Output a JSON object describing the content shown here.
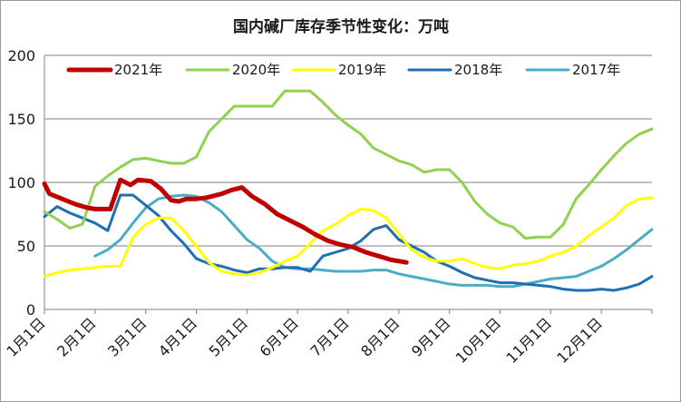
{
  "chart_data": {
    "type": "line",
    "title": "国内碱厂库存季节性变化：万吨",
    "xlabel": "",
    "ylabel": "",
    "ylim": [
      0,
      200
    ],
    "yticks": [
      0,
      50,
      100,
      150,
      200
    ],
    "grid": "horizontal",
    "legend_position": "top",
    "x_categories": [
      "1月1日",
      "2月1日",
      "3月1日",
      "4月1日",
      "5月1日",
      "6月1日",
      "7月1日",
      "8月1日",
      "9月1日",
      "10月1日",
      "11月1日",
      "12月1日"
    ],
    "series": [
      {
        "name": "2021年",
        "color": "#c00000",
        "x": [
          0,
          0.1,
          0.35,
          0.6,
          0.85,
          1,
          1.15,
          1.3,
          1.5,
          1.7,
          1.85,
          2.1,
          2.3,
          2.5,
          2.65,
          2.8,
          3,
          3.2,
          3.5,
          3.7,
          3.9,
          4.1,
          4.35,
          4.6,
          4.85,
          5.1,
          5.35,
          5.6,
          5.85,
          6.1,
          6.35,
          6.6,
          6.85,
          7.15
        ],
        "y": [
          99,
          91,
          87,
          83,
          80,
          79,
          79,
          79,
          102,
          98,
          102,
          101,
          95,
          86,
          85,
          87,
          87,
          88,
          91,
          94,
          96,
          89,
          83,
          75,
          70,
          65,
          59,
          54,
          51,
          49,
          45,
          42,
          39,
          37
        ]
      },
      {
        "name": "2020年",
        "color": "#92d050",
        "x": [
          0,
          0.25,
          0.5,
          0.75,
          1,
          1.25,
          1.5,
          1.75,
          2,
          2.25,
          2.5,
          2.75,
          3,
          3.25,
          3.5,
          3.75,
          4,
          4.25,
          4.5,
          4.75,
          5,
          5.25,
          5.5,
          5.75,
          6,
          6.25,
          6.5,
          6.75,
          7,
          7.25,
          7.5,
          7.75,
          8,
          8.25,
          8.5,
          8.75,
          9,
          9.25,
          9.5,
          9.75,
          10,
          10.25,
          10.5,
          10.75,
          11,
          11.25,
          11.5,
          11.75,
          12
        ],
        "y": [
          77,
          71,
          64,
          67,
          97,
          105,
          112,
          118,
          119,
          117,
          115,
          115,
          120,
          140,
          150,
          160,
          160,
          160,
          160,
          172,
          172,
          172,
          163,
          153,
          145,
          138,
          127,
          122,
          117,
          114,
          108,
          110,
          110,
          100,
          85,
          75,
          68,
          65,
          56,
          57,
          57,
          67,
          87,
          98,
          110,
          121,
          131,
          138,
          142
        ]
      },
      {
        "name": "2019年",
        "color": "#ffff00",
        "x": [
          0,
          0.25,
          0.5,
          0.75,
          1,
          1.25,
          1.5,
          1.75,
          2,
          2.25,
          2.5,
          2.75,
          3,
          3.25,
          3.5,
          3.75,
          4,
          4.25,
          4.5,
          4.75,
          5,
          5.25,
          5.5,
          5.75,
          6,
          6.25,
          6.5,
          6.75,
          7,
          7.25,
          7.5,
          7.75,
          8,
          8.25,
          8.5,
          8.75,
          9,
          9.25,
          9.5,
          9.75,
          10,
          10.25,
          10.5,
          10.75,
          11,
          11.25,
          11.5,
          11.75,
          12
        ],
        "y": [
          26,
          29,
          31,
          32,
          33,
          34,
          34,
          57,
          67,
          72,
          72,
          62,
          50,
          37,
          30,
          28,
          27,
          29,
          33,
          38,
          42,
          52,
          62,
          67,
          74,
          79,
          78,
          72,
          60,
          47,
          41,
          38,
          38,
          40,
          36,
          33,
          32,
          35,
          36,
          38,
          42,
          45,
          50,
          58,
          65,
          72,
          82,
          87,
          88
        ]
      },
      {
        "name": "2018年",
        "color": "#1f6fb5",
        "x": [
          0,
          0.25,
          0.5,
          0.75,
          1,
          1.25,
          1.5,
          1.75,
          2,
          2.25,
          2.5,
          2.75,
          3,
          3.25,
          3.5,
          3.75,
          4,
          4.25,
          4.5,
          4.75,
          5,
          5.25,
          5.5,
          5.75,
          6,
          6.25,
          6.5,
          6.75,
          7,
          7.25,
          7.5,
          7.75,
          8,
          8.25,
          8.5,
          8.75,
          9,
          9.25,
          9.5,
          9.75,
          10,
          10.25,
          10.5,
          10.75,
          11,
          11.25,
          11.5,
          11.75,
          12
        ],
        "y": [
          73,
          81,
          76,
          72,
          68,
          62,
          90,
          90,
          82,
          74,
          62,
          52,
          40,
          36,
          34,
          31,
          29,
          32,
          32,
          33,
          33,
          30,
          42,
          45,
          48,
          54,
          63,
          66,
          55,
          50,
          45,
          38,
          34,
          29,
          25,
          23,
          21,
          21,
          20,
          19,
          18,
          16,
          15,
          15,
          16,
          15,
          17,
          20,
          26
        ]
      },
      {
        "name": "2017年",
        "color": "#4bacc6",
        "x": [
          1,
          1.25,
          1.5,
          1.75,
          2,
          2.25,
          2.5,
          2.75,
          3,
          3.25,
          3.5,
          3.75,
          4,
          4.25,
          4.5,
          4.75,
          5,
          5.25,
          5.5,
          5.75,
          6,
          6.25,
          6.5,
          6.75,
          7,
          7.25,
          7.5,
          7.75,
          8,
          8.25,
          8.5,
          8.75,
          9,
          9.25,
          9.5,
          9.75,
          10,
          10.25,
          10.5,
          10.75,
          11,
          11.25,
          11.5,
          11.75,
          12
        ],
        "y": [
          42,
          47,
          55,
          68,
          80,
          87,
          89,
          90,
          89,
          84,
          77,
          66,
          55,
          48,
          38,
          33,
          32,
          32,
          31,
          30,
          30,
          30,
          31,
          31,
          28,
          26,
          24,
          22,
          20,
          19,
          19,
          19,
          18,
          18,
          20,
          22,
          24,
          25,
          26,
          30,
          34,
          40,
          47,
          55,
          63
        ]
      }
    ]
  }
}
